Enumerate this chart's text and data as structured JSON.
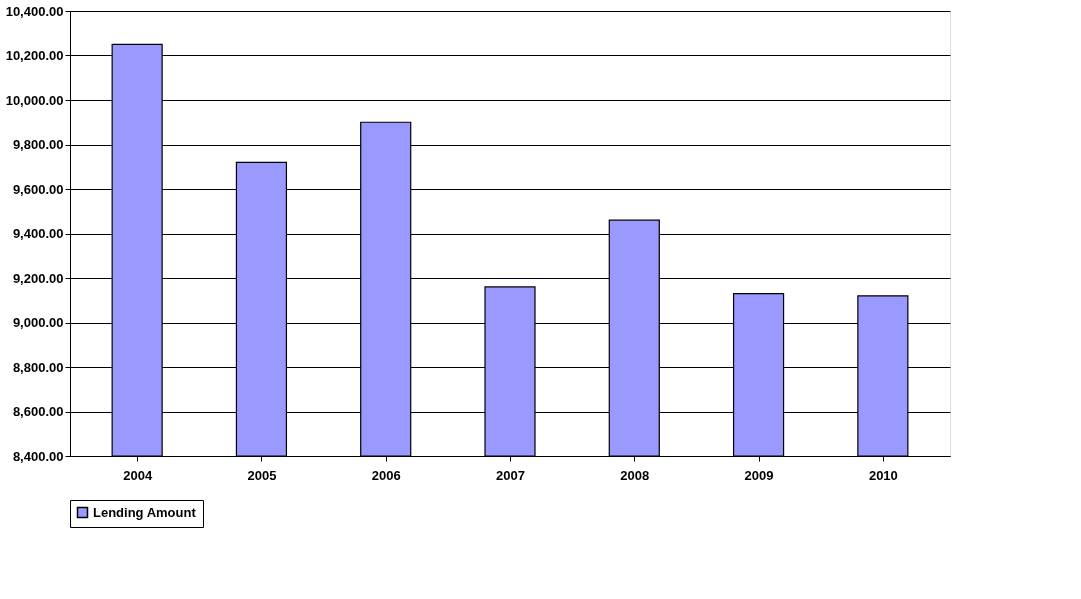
{
  "chart_data": {
    "type": "bar",
    "categories": [
      "2004",
      "2005",
      "2006",
      "2007",
      "2008",
      "2009",
      "2010"
    ],
    "series": [
      {
        "name": "Lending Amount",
        "color": "#9999ff",
        "values": [
          10250,
          9720,
          9900,
          9160,
          9460,
          9130,
          9120
        ]
      }
    ],
    "ylim": [
      8400,
      10400
    ],
    "yticks": [
      {
        "value": 8400,
        "label": "8,400.00"
      },
      {
        "value": 8600,
        "label": "8,600.00"
      },
      {
        "value": 8800,
        "label": "8,800.00"
      },
      {
        "value": 9000,
        "label": "9,000.00"
      },
      {
        "value": 9200,
        "label": "9,200.00"
      },
      {
        "value": 9400,
        "label": "9,400.00"
      },
      {
        "value": 9600,
        "label": "9,600.00"
      },
      {
        "value": 9800,
        "label": "9,800.00"
      },
      {
        "value": 10000,
        "label": "10,000.00"
      },
      {
        "value": 10200,
        "label": "10,200.00"
      },
      {
        "value": 10400,
        "label": "10,400.00"
      }
    ],
    "grid": "y",
    "legend": "bottom"
  }
}
